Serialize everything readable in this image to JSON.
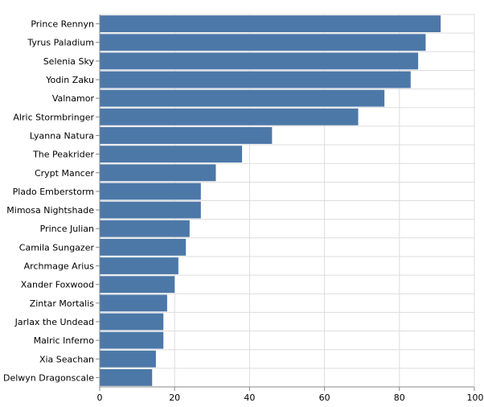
{
  "chart_data": {
    "type": "bar",
    "orientation": "horizontal",
    "title": "",
    "xlabel": "",
    "ylabel": "",
    "categories": [
      "Prince Rennyn",
      "Tyrus Paladium",
      "Selenia Sky",
      "Yodin Zaku",
      "Valnamor",
      "Alric Stormbringer",
      "Lyanna Natura",
      "The Peakrider",
      "Crypt Mancer",
      "Plado Emberstorm",
      "Mimosa Nightshade",
      "Prince Julian",
      "Camila Sungazer",
      "Archmage Arius",
      "Xander Foxwood",
      "Zintar Mortalis",
      "Jarlax the Undead",
      "Malric Inferno",
      "Xia Seachan",
      "Delwyn Dragonscale"
    ],
    "values": [
      91,
      87,
      85,
      83,
      76,
      69,
      46,
      38,
      31,
      27,
      27,
      24,
      23,
      21,
      20,
      18,
      17,
      17,
      15,
      14
    ],
    "xlim": [
      0,
      100
    ],
    "x_ticks": [
      "0",
      "20",
      "40",
      "60",
      "80",
      "100"
    ],
    "grid": true,
    "bar_color": "#4c78a8"
  }
}
